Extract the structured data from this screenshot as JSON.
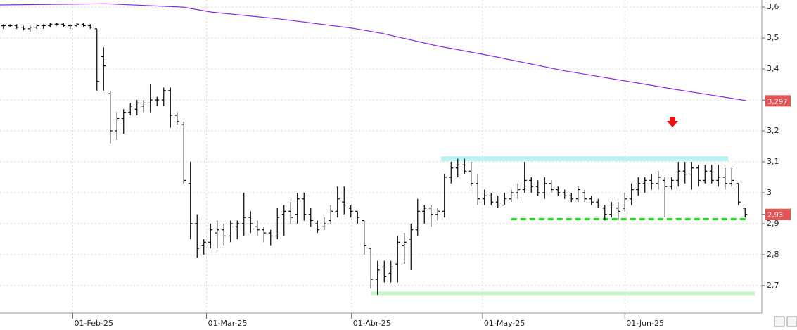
{
  "chart_data": {
    "type": "ohlc",
    "xlim": [
      -0.5,
      113.5
    ],
    "xticks": [
      {
        "value": 10.4,
        "label": "01-Feb-25"
      },
      {
        "value": 30.4,
        "label": "01-Mar-25"
      },
      {
        "value": 52.1,
        "label": "01-Abr-25"
      },
      {
        "value": 71.7,
        "label": "01-May-25"
      },
      {
        "value": 93,
        "label": "01-Jun-25"
      }
    ],
    "ylim": [
      2.611,
      3.623
    ],
    "yticks": [
      {
        "value": 2.7,
        "label": "2,7"
      },
      {
        "value": 2.8,
        "label": "2,8"
      },
      {
        "value": 2.9,
        "label": "2,9"
      },
      3,
      {
        "value": 3.1,
        "label": "3,1"
      },
      {
        "value": 3.2,
        "label": "3,2"
      },
      {
        "value": 3.3,
        "label": "3,3"
      },
      {
        "value": 3.4,
        "label": "3,4"
      },
      {
        "value": 3.5,
        "label": "3,5"
      },
      {
        "value": 3.6,
        "label": "3,6"
      }
    ],
    "grid": true,
    "color": "#000000",
    "ohlc": [
      [
        3.54,
        3.545,
        3.53,
        3.54
      ],
      [
        3.54,
        3.545,
        3.535,
        3.54
      ],
      [
        3.54,
        3.545,
        3.53,
        3.535
      ],
      [
        3.535,
        3.54,
        3.525,
        3.53
      ],
      [
        3.53,
        3.54,
        3.52,
        3.535
      ],
      [
        3.535,
        3.545,
        3.53,
        3.54
      ],
      [
        3.54,
        3.545,
        3.53,
        3.54
      ],
      [
        3.54,
        3.55,
        3.535,
        3.545
      ],
      [
        3.545,
        3.55,
        3.54,
        3.545
      ],
      [
        3.545,
        3.55,
        3.535,
        3.54
      ],
      [
        3.54,
        3.545,
        3.53,
        3.54
      ],
      [
        3.54,
        3.55,
        3.535,
        3.545
      ],
      [
        3.545,
        3.55,
        3.535,
        3.54
      ],
      [
        3.54,
        3.545,
        3.53,
        3.535
      ],
      [
        3.53,
        3.53,
        3.33,
        3.36
      ],
      [
        3.44,
        3.47,
        3.33,
        3.41
      ],
      [
        3.32,
        3.33,
        3.16,
        3.2
      ],
      [
        3.2,
        3.26,
        3.17,
        3.24
      ],
      [
        3.24,
        3.27,
        3.19,
        3.26
      ],
      [
        3.26,
        3.29,
        3.25,
        3.28
      ],
      [
        3.27,
        3.3,
        3.25,
        3.29
      ],
      [
        3.28,
        3.3,
        3.26,
        3.29
      ],
      [
        3.29,
        3.35,
        3.26,
        3.3
      ],
      [
        3.3,
        3.31,
        3.28,
        3.3
      ],
      [
        3.3,
        3.34,
        3.28,
        3.33
      ],
      [
        3.33,
        3.34,
        3.21,
        3.25
      ],
      [
        3.25,
        3.26,
        3.22,
        3.23
      ],
      [
        3.22,
        3.23,
        3.03,
        3.04
      ],
      [
        3.03,
        3.1,
        2.85,
        2.9
      ],
      [
        2.9,
        2.93,
        2.79,
        2.82
      ],
      [
        2.83,
        2.85,
        2.8,
        2.84
      ],
      [
        2.84,
        2.9,
        2.82,
        2.88
      ],
      [
        2.87,
        2.91,
        2.82,
        2.88
      ],
      [
        2.88,
        2.9,
        2.83,
        2.86
      ],
      [
        2.86,
        2.91,
        2.84,
        2.9
      ],
      [
        2.89,
        2.91,
        2.85,
        2.9
      ],
      [
        2.9,
        3.0,
        2.86,
        2.92
      ],
      [
        2.92,
        2.94,
        2.87,
        2.9
      ],
      [
        2.89,
        2.91,
        2.86,
        2.88
      ],
      [
        2.88,
        2.89,
        2.84,
        2.87
      ],
      [
        2.87,
        2.88,
        2.83,
        2.86
      ],
      [
        2.86,
        2.95,
        2.85,
        2.92
      ],
      [
        2.93,
        2.96,
        2.86,
        2.94
      ],
      [
        2.94,
        2.97,
        2.9,
        2.92
      ],
      [
        2.93,
        3.0,
        2.9,
        2.98
      ],
      [
        2.98,
        3.0,
        2.91,
        2.93
      ],
      [
        2.93,
        2.95,
        2.89,
        2.91
      ],
      [
        2.9,
        2.91,
        2.87,
        2.88
      ],
      [
        2.89,
        2.92,
        2.88,
        2.9
      ],
      [
        2.91,
        2.96,
        2.9,
        2.94
      ],
      [
        2.94,
        3.02,
        2.92,
        2.98
      ],
      [
        2.97,
        3.02,
        2.93,
        2.96
      ],
      [
        2.95,
        2.96,
        2.92,
        2.94
      ],
      [
        2.94,
        2.94,
        2.9,
        2.92
      ],
      [
        2.91,
        2.91,
        2.8,
        2.83
      ],
      [
        2.82,
        2.82,
        2.69,
        2.72
      ],
      [
        2.72,
        2.78,
        2.67,
        2.75
      ],
      [
        2.76,
        2.78,
        2.71,
        2.73
      ],
      [
        2.74,
        2.78,
        2.71,
        2.76
      ],
      [
        2.77,
        2.86,
        2.71,
        2.84
      ],
      [
        2.83,
        2.87,
        2.77,
        2.84
      ],
      [
        2.85,
        2.9,
        2.75,
        2.88
      ],
      [
        2.88,
        2.98,
        2.86,
        2.94
      ],
      [
        2.94,
        2.96,
        2.9,
        2.95
      ],
      [
        2.95,
        2.96,
        2.89,
        2.93
      ],
      [
        2.93,
        2.95,
        2.91,
        2.94
      ],
      [
        2.94,
        3.06,
        2.92,
        3.05
      ],
      [
        3.05,
        3.1,
        3.03,
        3.08
      ],
      [
        3.08,
        3.11,
        3.05,
        3.09
      ],
      [
        3.09,
        3.11,
        3.06,
        3.07
      ],
      [
        3.07,
        3.1,
        3.02,
        3.03
      ],
      [
        3.03,
        3.06,
        2.96,
        2.98
      ],
      [
        2.98,
        3.01,
        2.96,
        2.99
      ],
      [
        2.99,
        3.0,
        2.96,
        2.97
      ],
      [
        2.97,
        2.99,
        2.95,
        2.96
      ],
      [
        2.96,
        3.0,
        2.96,
        2.98
      ],
      [
        2.98,
        3.01,
        2.97,
        3.0
      ],
      [
        3.0,
        3.03,
        2.98,
        3.01
      ],
      [
        3.01,
        3.1,
        3.0,
        3.04
      ],
      [
        3.04,
        3.05,
        3.0,
        3.02
      ],
      [
        3.02,
        3.04,
        2.99,
        3.0
      ],
      [
        3.0,
        3.05,
        2.98,
        3.03
      ],
      [
        3.03,
        3.04,
        3.0,
        3.01
      ],
      [
        3.01,
        3.02,
        2.99,
        3.0
      ],
      [
        3.0,
        3.01,
        2.98,
        2.99
      ],
      [
        2.99,
        3.0,
        2.97,
        2.98
      ],
      [
        2.98,
        3.02,
        2.97,
        3.01
      ],
      [
        3.0,
        3.01,
        2.97,
        2.98
      ],
      [
        2.98,
        2.99,
        2.96,
        2.97
      ],
      [
        2.97,
        2.98,
        2.95,
        2.96
      ],
      [
        2.95,
        2.96,
        2.91,
        2.93
      ],
      [
        2.93,
        2.97,
        2.92,
        2.96
      ],
      [
        2.95,
        2.97,
        2.91,
        2.94
      ],
      [
        2.95,
        3.0,
        2.94,
        2.98
      ],
      [
        2.98,
        3.03,
        2.96,
        3.01
      ],
      [
        3.01,
        3.05,
        2.99,
        3.03
      ],
      [
        3.03,
        3.05,
        3.0,
        3.04
      ],
      [
        3.04,
        3.06,
        3.01,
        3.03
      ],
      [
        3.03,
        3.07,
        3.01,
        3.05
      ],
      [
        3.04,
        3.05,
        2.92,
        3.02
      ],
      [
        3.02,
        3.05,
        3.01,
        3.04
      ],
      [
        3.04,
        3.1,
        3.02,
        3.07
      ],
      [
        3.07,
        3.1,
        3.03,
        3.06
      ],
      [
        3.06,
        3.1,
        3.01,
        3.08
      ],
      [
        3.08,
        3.09,
        3.02,
        3.04
      ],
      [
        3.04,
        3.09,
        3.03,
        3.07
      ],
      [
        3.07,
        3.09,
        3.03,
        3.04
      ],
      [
        3.04,
        3.09,
        3.02,
        3.05
      ],
      [
        3.05,
        3.08,
        3.01,
        3.03
      ],
      [
        3.03,
        3.08,
        3.02,
        3.04
      ],
      [
        3.03,
        3.03,
        2.96,
        2.97
      ],
      [
        2.95,
        2.95,
        2.92,
        2.93
      ]
    ],
    "moving_average": {
      "color": "#8a2be2",
      "x": [
        -0.5,
        15.3,
        26.9,
        31.1,
        41.7,
        52.2,
        56.5,
        64.9,
        73.3,
        83.8,
        94.3,
        100.6,
        111.1
      ],
      "values": [
        3.607,
        3.611,
        3.6,
        3.584,
        3.561,
        3.532,
        3.516,
        3.475,
        3.441,
        3.395,
        3.357,
        3.334,
        3.298
      ]
    },
    "levels": [
      {
        "value": 3.11,
        "from": 65.5,
        "to": 108.5,
        "color": "#b8f2f2",
        "width": 7,
        "dash": false
      },
      {
        "value": 2.915,
        "from": 76.0,
        "to": 111.5,
        "color": "#22dd22",
        "width": 3,
        "dash": true
      },
      {
        "value": 2.675,
        "from": 55.0,
        "to": 112.5,
        "color": "#c6f7c6",
        "width": 5,
        "dash": false
      }
    ],
    "price_labels": [
      {
        "value": 3.297,
        "label": "3,297",
        "color": "#e05555"
      },
      {
        "value": 2.93,
        "label": "2,93",
        "color": "#e05555"
      }
    ]
  }
}
